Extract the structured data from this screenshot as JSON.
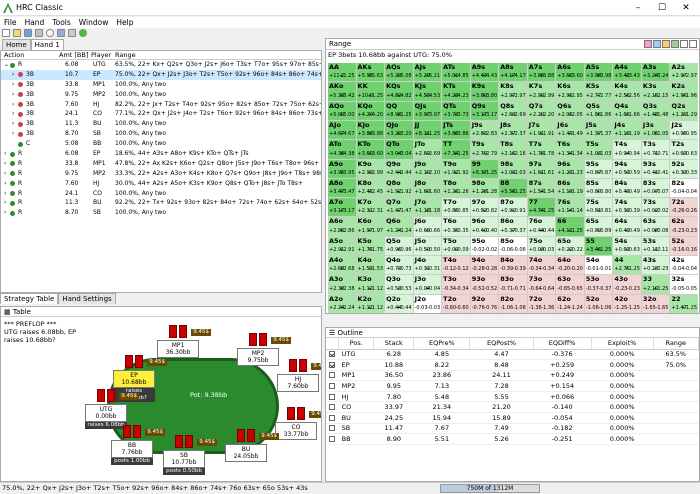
{
  "app": {
    "title": "HRC Classic"
  },
  "window_controls": {
    "min": "–",
    "max": "☐",
    "close": "✕"
  },
  "menu": [
    "File",
    "Hand",
    "Tools",
    "Window",
    "Help"
  ],
  "left_tabs": [
    "Home",
    "Hand 1"
  ],
  "tree": {
    "headers": {
      "action": "Action",
      "amt": "Amt [BB]",
      "player": "Player",
      "range": "Range"
    },
    "rows": [
      {
        "indent": 0,
        "exp": "⌄",
        "dot": "#2e8b2e",
        "action": "R",
        "amt": "6.08",
        "player": "UTG",
        "range": "63.5%, 22+ Kx+ Q2s+ Q3o+ J2s+ J6o+ T3s+ T7o+ 95s+ 97o+ 85s+ 87o+ 74s+ 76o+ 64s+ 65o 53s+ 43s",
        "sel": false
      },
      {
        "indent": 1,
        "exp": "›",
        "dot": "#d04040",
        "action": "3B",
        "amt": "10.7",
        "player": "EP",
        "range": "75.0%, 22+ Qx+ J2s+ J3o+ T2s+ T5o+ 92s+ 96o+ 84s+ 86o+ 74s+ 76o 63s+ 65o 53s+ 43s",
        "sel": true
      },
      {
        "indent": 1,
        "exp": "›",
        "dot": "#d04040",
        "action": "3B",
        "amt": "33.8",
        "player": "MP1",
        "range": "100.0%, Any two",
        "sel": false
      },
      {
        "indent": 1,
        "exp": "›",
        "dot": "#d04040",
        "action": "3B",
        "amt": "9.75",
        "player": "MP2",
        "range": "100.0%, Any two",
        "sel": false
      },
      {
        "indent": 1,
        "exp": "›",
        "dot": "#d04040",
        "action": "3B",
        "amt": "7.60",
        "player": "HJ",
        "range": "82.2%, 22+ Jx+ T2s+ T4o+ 92s+ 95o+ 82s+ 85o+ 72s+ 75o+ 62s+ 65o 52s+ 54o 42s+ 32s",
        "sel": false
      },
      {
        "indent": 1,
        "exp": "›",
        "dot": "#d04040",
        "action": "3B",
        "amt": "24.1",
        "player": "CO",
        "range": "77.1%, 22+ Qx+ J2s+ J4o+ T2s+ T6o+ 92s+ 96o+ 84s+ 86o+ 73s+ 76o 63s+ 65o 53s+ 43s",
        "sel": false
      },
      {
        "indent": 1,
        "exp": "›",
        "dot": "#d04040",
        "action": "3B",
        "amt": "11.3",
        "player": "BU",
        "range": "100.0%, Any two",
        "sel": false
      },
      {
        "indent": 1,
        "exp": "›",
        "dot": "#d04040",
        "action": "3B",
        "amt": "8.70",
        "player": "SB",
        "range": "100.0%, Any two",
        "sel": false
      },
      {
        "indent": 1,
        "exp": "",
        "dot": "#2e8b2e",
        "action": "C",
        "amt": "5.08",
        "player": "BB",
        "range": "100.0%, Any two",
        "sel": false
      },
      {
        "indent": 0,
        "exp": "›",
        "dot": "#2e8b2e",
        "action": "R",
        "amt": "6.08",
        "player": "EP",
        "range": "18.6%, 44+ A3s+ A8o+ K9s+ KTo+ QTs+ JTs",
        "sel": false
      },
      {
        "indent": 0,
        "exp": "›",
        "dot": "#2e8b2e",
        "action": "R",
        "amt": "33.8",
        "player": "MP1",
        "range": "47.8%, 22+ Ax K2s+ K6o+ Q2s+ Q8o+ J5s+ J9o+ T6s+ T8o+ 96s+ 98o 85s+ 87o 75s+ 64s+ 54s",
        "sel": false
      },
      {
        "indent": 0,
        "exp": "›",
        "dot": "#2e8b2e",
        "action": "R",
        "amt": "9.75",
        "player": "MP2",
        "range": "33.3%, 22+ A2s+ A3o+ K4s+ K8o+ Q7s+ Q9o+ J8s+ J9o+ T8s+ 98s",
        "sel": false
      },
      {
        "indent": 0,
        "exp": "›",
        "dot": "#2e8b2e",
        "action": "R",
        "amt": "7.60",
        "player": "HJ",
        "range": "30.0%, 44+ A2s+ A5o+ K3s+ K9o+ Q8s+ QTo+ J8s+ JTo T8s+",
        "sel": false
      },
      {
        "indent": 0,
        "exp": "›",
        "dot": "#2e8b2e",
        "action": "R",
        "amt": "24.1",
        "player": "CO",
        "range": "100.0%, Any two",
        "sel": false
      },
      {
        "indent": 0,
        "exp": "›",
        "dot": "#2e8b2e",
        "action": "R",
        "amt": "11.3",
        "player": "BU",
        "range": "92.2%, 22+ Tx+ 92s+ 93o+ 82s+ 84o+ 72s+ 74o+ 62s+ 64o+ 52s+ 54o 42s+ 43o 32s",
        "sel": false
      },
      {
        "indent": 0,
        "exp": "›",
        "dot": "#2e8b2e",
        "action": "R",
        "amt": "8.70",
        "player": "SB",
        "range": "100.0%, Any two",
        "sel": false
      }
    ]
  },
  "left_bottom_tabs": [
    "Strategy Table",
    "Hand Settings"
  ],
  "table_panel": {
    "title": "Table",
    "log": "*** PREFLOP ***\nUTG raises 6.08bb, EP\nraises 10.68bb?",
    "pot": "Pot:  9.38bb",
    "seats": [
      {
        "id": "MP1",
        "name": "MP1",
        "stack": "36.30bb",
        "action": "",
        "chip": "9.45$",
        "hl": false
      },
      {
        "id": "MP2",
        "name": "MP2",
        "stack": "9.75bb",
        "action": "",
        "chip": "9.45$",
        "hl": false
      },
      {
        "id": "EP",
        "name": "EP",
        "stack": "10.68bb",
        "action": "raises 10.68bb?",
        "chip": "9.45$",
        "hl": true
      },
      {
        "id": "HJ",
        "name": "HJ",
        "stack": "7.60bb",
        "action": "",
        "chip": "9.45$",
        "hl": false
      },
      {
        "id": "UTG",
        "name": "UTG",
        "stack": "0.00bb",
        "action": "raises 6.08bb",
        "chip": "9.45$",
        "hl": false
      },
      {
        "id": "CO",
        "name": "CO",
        "stack": "33.77bb",
        "action": "",
        "chip": "9.45$",
        "hl": false
      },
      {
        "id": "BB",
        "name": "BB",
        "stack": "7.76bb",
        "action": "posts 1.00bb",
        "chip": "9.45$",
        "hl": false
      },
      {
        "id": "SB",
        "name": "SB",
        "stack": "10.77bb",
        "action": "posts 0.50bb",
        "chip": "9.45$",
        "hl": false
      },
      {
        "id": "BU",
        "name": "BU",
        "stack": "24.05bb",
        "action": "",
        "chip": "9.45$",
        "hl": false
      }
    ]
  },
  "range_panel": {
    "title": "Range",
    "subtitle": "EP 3bets 10.68bb against UTG: 75.0%",
    "colors": {
      "strong": "#6fd26f",
      "mid": "#a8e6a8",
      "light": "#d6f5d6",
      "neutral": "#ffffff",
      "neg": "#f3d4d4"
    },
    "hands": [
      [
        "AA",
        "AKs",
        "AQs",
        "AJs",
        "ATs",
        "A9s",
        "A8s",
        "A7s",
        "A6s",
        "A5s",
        "A4s",
        "A3s",
        "A2s"
      ],
      [
        "AKo",
        "KK",
        "KQs",
        "KJs",
        "KTs",
        "K9s",
        "K8s",
        "K7s",
        "K6s",
        "K5s",
        "K4s",
        "K3s",
        "K2s"
      ],
      [
        "AQo",
        "KQo",
        "QQ",
        "QJs",
        "QTs",
        "Q9s",
        "Q8s",
        "Q7s",
        "Q6s",
        "Q5s",
        "Q4s",
        "Q3s",
        "Q2s"
      ],
      [
        "AJo",
        "KJo",
        "QJo",
        "JJ",
        "JTs",
        "J9s",
        "J8s",
        "J7s",
        "J6s",
        "J5s",
        "J4s",
        "J3s",
        "J2s"
      ],
      [
        "ATo",
        "KTo",
        "QTo",
        "JTo",
        "TT",
        "T9s",
        "T8s",
        "T7s",
        "T6s",
        "T5s",
        "T4s",
        "T3s",
        "T2s"
      ],
      [
        "A9o",
        "K9o",
        "Q9o",
        "J9o",
        "T9o",
        "99",
        "98s",
        "97s",
        "96s",
        "95s",
        "94s",
        "93s",
        "92s"
      ],
      [
        "A8o",
        "K8o",
        "Q8o",
        "J8o",
        "T8o",
        "98o",
        "88",
        "87s",
        "86s",
        "85s",
        "84s",
        "83s",
        "82s"
      ],
      [
        "A7o",
        "K7o",
        "Q7o",
        "J7o",
        "T7o",
        "97o",
        "87o",
        "77",
        "76s",
        "75s",
        "74s",
        "73s",
        "72s"
      ],
      [
        "A6o",
        "K6o",
        "Q6o",
        "J6o",
        "T6o",
        "96o",
        "86o",
        "76o",
        "66",
        "65s",
        "64s",
        "63s",
        "62s"
      ],
      [
        "A5o",
        "K5o",
        "Q5o",
        "J5o",
        "T5o",
        "95o",
        "85o",
        "75o",
        "65o",
        "55",
        "54s",
        "53s",
        "52s"
      ],
      [
        "A4o",
        "K4o",
        "Q4o",
        "J4o",
        "T4o",
        "94o",
        "84o",
        "74o",
        "64o",
        "54o",
        "44",
        "43s",
        "42s"
      ],
      [
        "A3o",
        "K3o",
        "Q3o",
        "J3o",
        "T3o",
        "93o",
        "83o",
        "73o",
        "63o",
        "53o",
        "43o",
        "33",
        "32s"
      ],
      [
        "A2o",
        "K2o",
        "Q2o",
        "J2o",
        "T2o",
        "92o",
        "82o",
        "72o",
        "62o",
        "52o",
        "42o",
        "32o",
        "22"
      ]
    ],
    "ev_left": [
      [
        "+11.2",
        "+5.95",
        "+5.29",
        "+5.29",
        "+5.01",
        "+4.43",
        "+4.17",
        "+3.88",
        "+3.60",
        "+3.98",
        "+3.43",
        "+3.24",
        "+2.97"
      ],
      [
        "+5.39",
        "+10.0",
        "+4.82",
        "+4.53",
        "+4.23",
        "+3.80",
        "+2.97",
        "+2.99",
        "+2.95",
        "+2.77",
        "+2.56",
        "+2.15",
        "+1.96"
      ],
      [
        "+5.00",
        "+4.20",
        "+8.98",
        "+3.97",
        "+3.73",
        "+3.17",
        "+2.69",
        "+2.20",
        "+2.05",
        "+1.86",
        "+1.66",
        "+1.48",
        "+1.29"
      ],
      [
        "+4.67",
        "+3.88",
        "+3.20",
        "+8.11",
        "+3.86",
        "+2.83",
        "+2.37",
        "+1.91",
        "+1.49",
        "+1.37",
        "+1.19",
        "+1.05",
        "+0.95"
      ],
      [
        "+4.38",
        "+3.60",
        "+3.04",
        "+2.69",
        "+7.34",
        "+2.79",
        "+2.16",
        "+1.78",
        "+1.34",
        "+1.03",
        "+0.94",
        "+0.71",
        "+0.63"
      ],
      [
        "+3.95",
        "+2.99",
        "+2.44",
        "+2.10",
        "+1.92",
        "+6.37",
        "+2.03",
        "+1.61",
        "+1.23",
        "+0.87",
        "+0.59",
        "+0.41",
        "+0.33"
      ],
      [
        "+3.47",
        "+2.45",
        "+1.92",
        "+1.60",
        "+1.26",
        "+1.28",
        "+5.56",
        "+1.54",
        "+1.19",
        "+0.80",
        "+0.49",
        "+0.07",
        "-0.04"
      ],
      [
        "+3.17",
        "+2.31",
        "+1.47",
        "+1.18",
        "+0.85",
        "+0.82",
        "+0.91",
        "+4.74",
        "+1.14",
        "+0.81",
        "+0.39",
        "+0.02",
        "-0.26"
      ],
      [
        "+2.86",
        "+1.97",
        "+1.24",
        "+0.66",
        "+0.35",
        "+0.40",
        "+0.37",
        "+0.44",
        "+4.11",
        "+0.89",
        "+0.49",
        "+0.08",
        "-0.23"
      ],
      [
        "+2.91",
        "+1.75",
        "+0.96",
        "+0.50",
        "+0.09",
        "-0.02",
        "-0.06",
        "+0.03",
        "+0.22",
        "+3.46",
        "+0.63",
        "+0.11",
        "-0.16"
      ],
      [
        "+2.68",
        "+1.53",
        "+0.73",
        "+0.31",
        "-0.12",
        "-0.28",
        "-0.39",
        "-0.34",
        "-0.20",
        "-0.01",
        "+2.75",
        "+0.23",
        "-0.04"
      ],
      [
        "+2.38",
        "+1.12",
        "+0.53",
        "+0.04",
        "-0.34",
        "-0.52",
        "-0.71",
        "-0.64",
        "-0.65",
        "-0.37",
        "-0.23",
        "+2.10",
        "-0.05"
      ],
      [
        "+2.24",
        "+1.12",
        "+0.44",
        "-0.03",
        "-0.60",
        "-0.76",
        "-1.06",
        "-1.36",
        "-1.24",
        "-1.06",
        "-1.25",
        "-1.65",
        "+1.47"
      ]
    ],
    "ev_right": [
      [
        "+1.25",
        "+5.63",
        "+5.08",
        "+5.21",
        "+4.85",
        "+4.43",
        "+4.17",
        "+3.88",
        "+3.60",
        "+3.98",
        "+3.43",
        "+3.24",
        "+2.97"
      ],
      [
        "+5.42",
        "+1.25",
        "+4.82",
        "+4.53",
        "+4.23",
        "+3.80",
        "+2.97",
        "+2.99",
        "+2.95",
        "+2.77",
        "+2.56",
        "+2.15",
        "+1.96"
      ],
      [
        "+5.00",
        "+4.20",
        "+1.25",
        "+3.97",
        "+3.73",
        "+3.17",
        "+2.69",
        "+2.20",
        "+2.05",
        "+1.86",
        "+1.66",
        "+1.48",
        "+1.29"
      ],
      [
        "+4.67",
        "+3.88",
        "+3.20",
        "+1.25",
        "+3.86",
        "+2.83",
        "+2.37",
        "+1.91",
        "+1.49",
        "+1.37",
        "+1.19",
        "+1.05",
        "+0.95"
      ],
      [
        "+4.38",
        "+3.60",
        "+3.04",
        "+2.69",
        "+1.25",
        "+2.79",
        "+2.16",
        "+1.78",
        "+1.34",
        "+1.03",
        "+0.94",
        "+0.71",
        "+0.63"
      ],
      [
        "+3.95",
        "+2.99",
        "+2.44",
        "+2.10",
        "+1.92",
        "+1.25",
        "+2.03",
        "+1.61",
        "+1.23",
        "+0.87",
        "+0.59",
        "+0.41",
        "+0.33"
      ],
      [
        "+3.47",
        "+2.45",
        "+1.92",
        "+1.60",
        "+1.26",
        "+1.28",
        "+1.25",
        "+1.54",
        "+1.19",
        "+0.80",
        "+0.49",
        "+0.07",
        "-0.04"
      ],
      [
        "+3.17",
        "+2.31",
        "+1.47",
        "+1.18",
        "+0.85",
        "+0.82",
        "+0.91",
        "+1.25",
        "+1.14",
        "+0.81",
        "+0.39",
        "+0.02",
        "-0.26"
      ],
      [
        "+2.86",
        "+1.97",
        "+1.24",
        "+0.66",
        "+0.35",
        "+0.40",
        "+0.37",
        "+0.44",
        "+1.25",
        "+0.89",
        "+0.49",
        "+0.08",
        "-0.23"
      ],
      [
        "+2.91",
        "+1.75",
        "+0.96",
        "+0.50",
        "+0.09",
        "-0.02",
        "-0.06",
        "+0.03",
        "+0.22",
        "+1.25",
        "+0.63",
        "+0.11",
        "-0.16"
      ],
      [
        "+2.68",
        "+1.53",
        "+0.73",
        "+0.31",
        "-0.12",
        "-0.28",
        "-0.39",
        "-0.34",
        "-0.20",
        "-0.01",
        "+1.25",
        "+0.23",
        "-0.04"
      ],
      [
        "+2.38",
        "+1.12",
        "+0.53",
        "+0.04",
        "-0.34",
        "-0.52",
        "-0.71",
        "-0.64",
        "-0.65",
        "-0.37",
        "-0.23",
        "+1.25",
        "-0.05"
      ],
      [
        "+2.24",
        "+1.12",
        "+0.44",
        "-0.03",
        "-0.60",
        "-0.76",
        "-1.06",
        "-1.36",
        "-1.24",
        "-1.06",
        "-1.25",
        "-1.65",
        "+1.25"
      ]
    ]
  },
  "outline": {
    "title": "Outline",
    "headers": [
      "",
      "Pos.",
      "Stack",
      "EQPre%",
      "EQPost%",
      "EQDiff%",
      "Exploit%",
      "Range"
    ],
    "rows": [
      {
        "checked": true,
        "pos": "UTG",
        "stack": "6.28",
        "pre": "4.85",
        "post": "4.47",
        "diff": "-0.376",
        "exploit": "0.000%",
        "range": "63.5%"
      },
      {
        "checked": true,
        "pos": "EP",
        "stack": "10.88",
        "pre": "8.22",
        "post": "8.48",
        "diff": "+0.259",
        "exploit": "0.000%",
        "range": "75.0%"
      },
      {
        "checked": false,
        "pos": "MP1",
        "stack": "36.50",
        "pre": "23.86",
        "post": "24.11",
        "diff": "+0.249",
        "exploit": "0.000%",
        "range": ""
      },
      {
        "checked": false,
        "pos": "MP2",
        "stack": "9.95",
        "pre": "7.13",
        "post": "7.28",
        "diff": "+0.154",
        "exploit": "0.000%",
        "range": ""
      },
      {
        "checked": false,
        "pos": "HJ",
        "stack": "7.80",
        "pre": "5.48",
        "post": "5.55",
        "diff": "+0.066",
        "exploit": "0.000%",
        "range": ""
      },
      {
        "checked": false,
        "pos": "CO",
        "stack": "33.97",
        "pre": "21.34",
        "post": "21.20",
        "diff": "-0.140",
        "exploit": "0.000%",
        "range": ""
      },
      {
        "checked": false,
        "pos": "BU",
        "stack": "24.25",
        "pre": "15.94",
        "post": "15.89",
        "diff": "-0.054",
        "exploit": "0.000%",
        "range": ""
      },
      {
        "checked": false,
        "pos": "SB",
        "stack": "11.47",
        "pre": "7.67",
        "post": "7.49",
        "diff": "-0.182",
        "exploit": "0.000%",
        "range": ""
      },
      {
        "checked": false,
        "pos": "BB",
        "stack": "8.90",
        "pre": "5.51",
        "post": "5.26",
        "diff": "-0.251",
        "exploit": "0.000%",
        "range": ""
      }
    ]
  },
  "status": {
    "text": "75.0%, 22+ Qx+ J2s+ J3o+ T2s+ T5o+ 92s+ 96o+ 84s+ 86o+ 74s+ 76o 63s+ 65o 53s+ 43s",
    "memory": "750M of 1312M",
    "memory_fraction": 0.57
  }
}
